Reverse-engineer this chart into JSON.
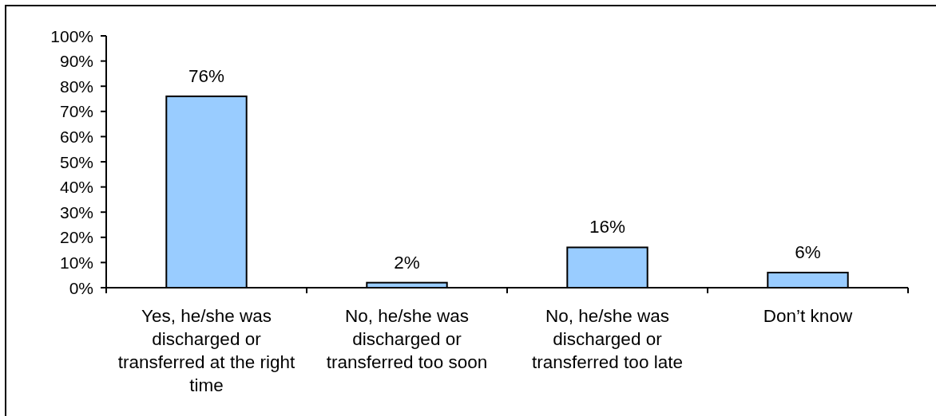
{
  "chart_data": {
    "type": "bar",
    "categories": [
      "Yes, he/she was discharged or transferred at the right time",
      "No, he/she was discharged or transferred too soon",
      "No, he/she was discharged or transferred too late",
      "Don’t know"
    ],
    "values": [
      76,
      2,
      16,
      6
    ],
    "color": "#99ccff",
    "value_labels": [
      "76%",
      "2%",
      "16%",
      "6%"
    ],
    "ylim": [
      0,
      100
    ],
    "yticks": [
      {
        "value": 0,
        "label": "0%"
      },
      {
        "value": 10,
        "label": "10%"
      },
      {
        "value": 20,
        "label": "20%"
      },
      {
        "value": 30,
        "label": "30%"
      },
      {
        "value": 40,
        "label": "40%"
      },
      {
        "value": 50,
        "label": "50%"
      },
      {
        "value": 60,
        "label": "60%"
      },
      {
        "value": 70,
        "label": "70%"
      },
      {
        "value": 80,
        "label": "80%"
      },
      {
        "value": 90,
        "label": "90%"
      },
      {
        "value": 100,
        "label": "100%"
      }
    ]
  }
}
